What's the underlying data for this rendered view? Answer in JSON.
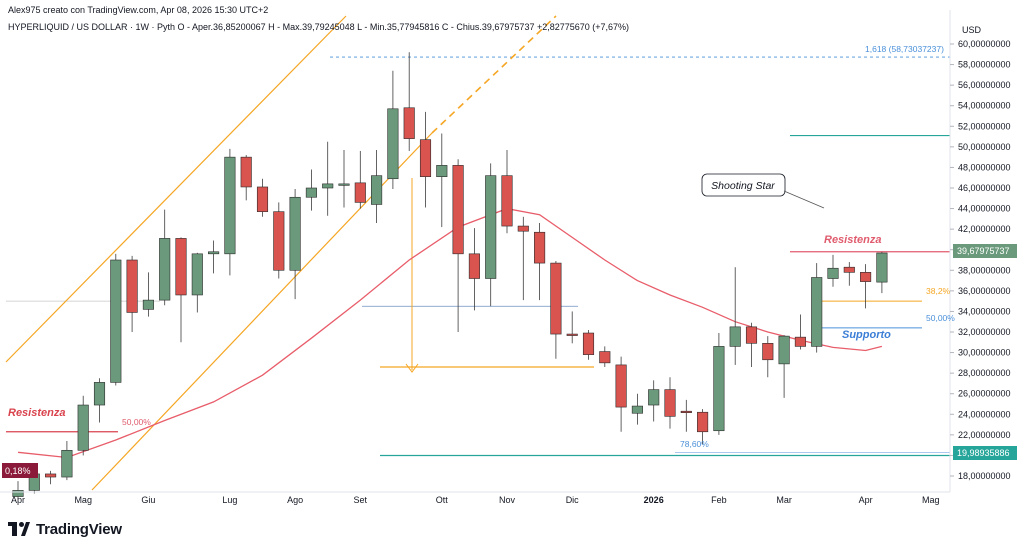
{
  "header": {
    "author_line": "Alex975 creato con TradingView.com, Apr 08, 2026 15:30 UTC+2",
    "symbol_line": "HYPERLIQUID / US DOLLAR · 1W · Pyth  O - Aper.36,85200067  H - Max.39,79245048  L - Min.35,77945816  C - Chius.39,67975737  +2,82775670 (+7,67%)"
  },
  "brand": {
    "name": "TradingView"
  },
  "colors": {
    "up": "#6a9a7b",
    "down": "#d9534f",
    "ema": "#e85d6a",
    "channel": "#f5a623",
    "fib_blue": "#4a90d9",
    "teal": "#26a69a",
    "resist": "#e05c6e"
  },
  "chart_data": {
    "type": "candlestick",
    "title": "HYPERLIQUID / US DOLLAR · 1W · Pyth",
    "currency_label": "USD",
    "y_range": [
      16.5,
      61
    ],
    "y_ticks": [
      "60,00000000",
      "58,00000000",
      "56,00000000",
      "54,00000000",
      "52,00000000",
      "50,00000000",
      "48,00000000",
      "46,00000000",
      "44,00000000",
      "42,00000000",
      "40,00000000",
      "38,00000000",
      "36,00000000",
      "34,00000000",
      "32,00000000",
      "30,00000000",
      "28,00000000",
      "26,00000000",
      "24,00000000",
      "22,00000000",
      "20,00000000",
      "18,00000000"
    ],
    "x_axis": {
      "weeks_range": [
        -1,
        58
      ],
      "labels": [
        {
          "label": "Apr",
          "week": 0
        },
        {
          "label": "Mag",
          "week": 4
        },
        {
          "label": "Giu",
          "week": 8
        },
        {
          "label": "Lug",
          "week": 13
        },
        {
          "label": "Ago",
          "week": 17
        },
        {
          "label": "Set",
          "week": 21
        },
        {
          "label": "Ott",
          "week": 26
        },
        {
          "label": "Nov",
          "week": 30
        },
        {
          "label": "Dic",
          "week": 34
        },
        {
          "label": "2026",
          "week": 39
        },
        {
          "label": "Feb",
          "week": 43
        },
        {
          "label": "Mar",
          "week": 47
        },
        {
          "label": "Apr",
          "week": 52
        },
        {
          "label": "Mag",
          "week": 56
        }
      ]
    },
    "candles": [
      {
        "w": 0,
        "o": 16.0,
        "h": 17.5,
        "l": 15.8,
        "c": 16.6
      },
      {
        "w": 1,
        "o": 16.6,
        "h": 18.8,
        "l": 16.3,
        "c": 18.2
      },
      {
        "w": 2,
        "o": 18.2,
        "h": 18.5,
        "l": 17.2,
        "c": 17.9
      },
      {
        "w": 3,
        "o": 17.9,
        "h": 21.4,
        "l": 17.6,
        "c": 20.5
      },
      {
        "w": 4,
        "o": 20.5,
        "h": 25.8,
        "l": 20.0,
        "c": 24.9
      },
      {
        "w": 5,
        "o": 24.9,
        "h": 27.5,
        "l": 23.2,
        "c": 27.1
      },
      {
        "w": 6,
        "o": 27.1,
        "h": 39.6,
        "l": 26.8,
        "c": 39.0
      },
      {
        "w": 7,
        "o": 39.0,
        "h": 39.4,
        "l": 32.0,
        "c": 33.9
      },
      {
        "w": 8,
        "o": 34.2,
        "h": 37.8,
        "l": 33.5,
        "c": 35.1
      },
      {
        "w": 9,
        "o": 35.1,
        "h": 43.9,
        "l": 34.6,
        "c": 41.1
      },
      {
        "w": 10,
        "o": 41.1,
        "h": 41.2,
        "l": 31.0,
        "c": 35.6
      },
      {
        "w": 11,
        "o": 35.6,
        "h": 39.7,
        "l": 33.9,
        "c": 39.6
      },
      {
        "w": 12,
        "o": 39.6,
        "h": 40.9,
        "l": 37.7,
        "c": 39.8
      },
      {
        "w": 13,
        "o": 39.6,
        "h": 49.8,
        "l": 37.5,
        "c": 49.0
      },
      {
        "w": 14,
        "o": 49.0,
        "h": 49.2,
        "l": 44.8,
        "c": 46.1
      },
      {
        "w": 15,
        "o": 46.1,
        "h": 46.9,
        "l": 43.2,
        "c": 43.7
      },
      {
        "w": 16,
        "o": 43.7,
        "h": 44.6,
        "l": 37.2,
        "c": 38.0
      },
      {
        "w": 17,
        "o": 38.0,
        "h": 45.9,
        "l": 35.2,
        "c": 45.1
      },
      {
        "w": 18,
        "o": 45.1,
        "h": 47.8,
        "l": 43.8,
        "c": 46.0
      },
      {
        "w": 19,
        "o": 46.0,
        "h": 50.5,
        "l": 43.3,
        "c": 46.4
      },
      {
        "w": 20,
        "o": 46.4,
        "h": 49.7,
        "l": 44.1,
        "c": 46.4
      },
      {
        "w": 21,
        "o": 46.5,
        "h": 49.6,
        "l": 44.0,
        "c": 44.6
      },
      {
        "w": 22,
        "o": 44.4,
        "h": 49.7,
        "l": 42.6,
        "c": 47.2
      },
      {
        "w": 23,
        "o": 46.9,
        "h": 57.4,
        "l": 45.9,
        "c": 53.7
      },
      {
        "w": 24,
        "o": 53.8,
        "h": 59.2,
        "l": 49.6,
        "c": 50.8
      },
      {
        "w": 25,
        "o": 50.7,
        "h": 53.4,
        "l": 44.1,
        "c": 47.1
      },
      {
        "w": 26,
        "o": 47.1,
        "h": 51.3,
        "l": 42.2,
        "c": 48.2
      },
      {
        "w": 27,
        "o": 48.2,
        "h": 48.8,
        "l": 32.0,
        "c": 39.6
      },
      {
        "w": 28,
        "o": 39.6,
        "h": 42.1,
        "l": 34.1,
        "c": 37.2
      },
      {
        "w": 29,
        "o": 37.2,
        "h": 48.4,
        "l": 34.5,
        "c": 47.2
      },
      {
        "w": 30,
        "o": 47.2,
        "h": 49.7,
        "l": 41.6,
        "c": 42.3
      },
      {
        "w": 31,
        "o": 42.3,
        "h": 43.2,
        "l": 35.1,
        "c": 41.8
      },
      {
        "w": 32,
        "o": 41.7,
        "h": 42.6,
        "l": 35.1,
        "c": 38.7
      },
      {
        "w": 33,
        "o": 38.7,
        "h": 38.9,
        "l": 29.4,
        "c": 31.8
      },
      {
        "w": 34,
        "o": 31.8,
        "h": 34.0,
        "l": 30.9,
        "c": 31.7
      },
      {
        "w": 35,
        "o": 31.9,
        "h": 32.2,
        "l": 29.3,
        "c": 29.8
      },
      {
        "w": 36,
        "o": 30.1,
        "h": 30.6,
        "l": 28.6,
        "c": 29.0
      },
      {
        "w": 37,
        "o": 28.8,
        "h": 29.6,
        "l": 22.3,
        "c": 24.7
      },
      {
        "w": 38,
        "o": 24.1,
        "h": 26.0,
        "l": 23.0,
        "c": 24.8
      },
      {
        "w": 39,
        "o": 24.9,
        "h": 27.3,
        "l": 23.3,
        "c": 26.4
      },
      {
        "w": 40,
        "o": 26.4,
        "h": 27.6,
        "l": 22.6,
        "c": 23.8
      },
      {
        "w": 41,
        "o": 24.3,
        "h": 25.4,
        "l": 22.3,
        "c": 24.2
      },
      {
        "w": 42,
        "o": 24.2,
        "h": 24.5,
        "l": 21.1,
        "c": 22.3
      },
      {
        "w": 43,
        "o": 22.4,
        "h": 31.9,
        "l": 22.0,
        "c": 30.6
      },
      {
        "w": 44,
        "o": 30.6,
        "h": 38.3,
        "l": 28.8,
        "c": 32.5
      },
      {
        "w": 45,
        "o": 32.5,
        "h": 32.9,
        "l": 28.6,
        "c": 30.9
      },
      {
        "w": 46,
        "o": 30.9,
        "h": 31.6,
        "l": 27.6,
        "c": 29.3
      },
      {
        "w": 47,
        "o": 28.9,
        "h": 31.7,
        "l": 25.6,
        "c": 31.6
      },
      {
        "w": 48,
        "o": 31.5,
        "h": 33.7,
        "l": 30.3,
        "c": 30.6
      },
      {
        "w": 49,
        "o": 30.6,
        "h": 38.7,
        "l": 30.0,
        "c": 37.3
      },
      {
        "w": 50,
        "o": 37.2,
        "h": 39.5,
        "l": 36.4,
        "c": 38.2
      },
      {
        "w": 51,
        "o": 38.3,
        "h": 38.8,
        "l": 36.5,
        "c": 37.8
      },
      {
        "w": 52,
        "o": 37.8,
        "h": 38.6,
        "l": 34.3,
        "c": 36.9
      },
      {
        "w": 53,
        "o": 36.85,
        "h": 39.79,
        "l": 35.78,
        "c": 39.68
      }
    ],
    "ema": [
      {
        "w": 0,
        "v": 20.3
      },
      {
        "w": 3,
        "v": 19.8
      },
      {
        "w": 6,
        "v": 21.5
      },
      {
        "w": 9,
        "v": 23.4
      },
      {
        "w": 12,
        "v": 25.2
      },
      {
        "w": 15,
        "v": 27.8
      },
      {
        "w": 18,
        "v": 31.4
      },
      {
        "w": 21,
        "v": 35.1
      },
      {
        "w": 24,
        "v": 39.0
      },
      {
        "w": 27,
        "v": 42.2
      },
      {
        "w": 30,
        "v": 44.0
      },
      {
        "w": 32,
        "v": 43.4
      },
      {
        "w": 34,
        "v": 41.2
      },
      {
        "w": 36,
        "v": 39.0
      },
      {
        "w": 38,
        "v": 37.0
      },
      {
        "w": 40,
        "v": 35.6
      },
      {
        "w": 42,
        "v": 34.4
      },
      {
        "w": 44,
        "v": 33.0
      },
      {
        "w": 46,
        "v": 32.0
      },
      {
        "w": 48,
        "v": 31.2
      },
      {
        "w": 50,
        "v": 30.5
      },
      {
        "w": 52,
        "v": 30.2
      },
      {
        "w": 53,
        "v": 30.6
      }
    ],
    "price_labels": {
      "last_price": "39,67975737",
      "support_price": "19,98935886"
    },
    "annotations": {
      "fib_1618": "1,618 (58,73037237)",
      "fib_382": "38,2%",
      "fib_50_right": "50,00%",
      "fib_50_left": "50,00%",
      "fib_786": "78,60%",
      "fib_0_left": "0,18%",
      "resistenza_left": "Resistenza",
      "resistenza_right": "Resistenza",
      "supporto": "Supporto",
      "shooting_star": "Shooting Star",
      "level_58_73": 58.73,
      "level_resist_right": 39.8,
      "level_382": 35.0,
      "level_50_right": 32.4,
      "level_support": 19.99,
      "level_resist_left": 22.3,
      "level_511": 51.1,
      "level_786": 20.3,
      "level_ott_mid": 34.5,
      "level_arrow_target": 28.6
    }
  }
}
